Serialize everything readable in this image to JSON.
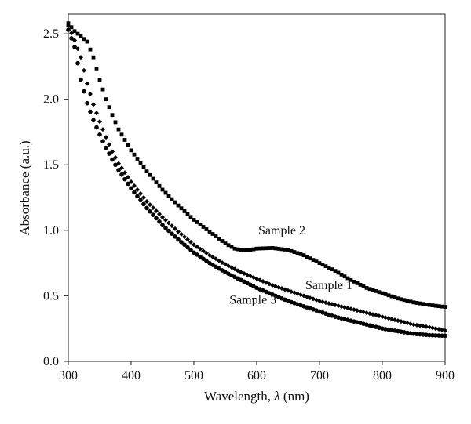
{
  "chart_data": {
    "type": "scatter",
    "xlabel_prefix": "Wavelength, ",
    "xlabel_symbol": "λ",
    "xlabel_suffix": " (nm)",
    "ylabel": "Absorbance (a.u.)",
    "xlim": [
      300,
      900
    ],
    "ylim": [
      0,
      2.65
    ],
    "x_ticks": [
      "300",
      "400",
      "500",
      "600",
      "700",
      "800",
      "900"
    ],
    "y_ticks": [
      "0.0",
      "0.5",
      "1.0",
      "1.5",
      "2.0",
      "2.5"
    ],
    "grid": false,
    "legend": "none",
    "series": [
      {
        "name": "Sample 1",
        "marker": "diamond",
        "points": [
          [
            300,
            2.56
          ],
          [
            310,
            2.45
          ],
          [
            320,
            2.32
          ],
          [
            330,
            2.12
          ],
          [
            340,
            1.96
          ],
          [
            350,
            1.83
          ],
          [
            360,
            1.71
          ],
          [
            370,
            1.6
          ],
          [
            380,
            1.51
          ],
          [
            390,
            1.44
          ],
          [
            400,
            1.37
          ],
          [
            425,
            1.22
          ],
          [
            450,
            1.1
          ],
          [
            475,
            0.99
          ],
          [
            500,
            0.89
          ],
          [
            525,
            0.81
          ],
          [
            550,
            0.74
          ],
          [
            575,
            0.68
          ],
          [
            600,
            0.63
          ],
          [
            625,
            0.58
          ],
          [
            650,
            0.54
          ],
          [
            675,
            0.5
          ],
          [
            700,
            0.46
          ],
          [
            725,
            0.43
          ],
          [
            750,
            0.4
          ],
          [
            775,
            0.37
          ],
          [
            800,
            0.34
          ],
          [
            825,
            0.31
          ],
          [
            850,
            0.28
          ],
          [
            875,
            0.26
          ],
          [
            900,
            0.235
          ]
        ]
      },
      {
        "name": "Sample 2",
        "marker": "square",
        "points": [
          [
            300,
            2.58
          ],
          [
            310,
            2.52
          ],
          [
            320,
            2.48
          ],
          [
            330,
            2.44
          ],
          [
            340,
            2.32
          ],
          [
            350,
            2.15
          ],
          [
            360,
            2.0
          ],
          [
            370,
            1.88
          ],
          [
            380,
            1.77
          ],
          [
            390,
            1.69
          ],
          [
            400,
            1.61
          ],
          [
            425,
            1.45
          ],
          [
            450,
            1.31
          ],
          [
            475,
            1.19
          ],
          [
            500,
            1.08
          ],
          [
            525,
            0.99
          ],
          [
            550,
            0.9
          ],
          [
            565,
            0.86
          ],
          [
            575,
            0.85
          ],
          [
            590,
            0.85
          ],
          [
            600,
            0.86
          ],
          [
            625,
            0.865
          ],
          [
            650,
            0.85
          ],
          [
            675,
            0.81
          ],
          [
            700,
            0.75
          ],
          [
            725,
            0.69
          ],
          [
            750,
            0.62
          ],
          [
            775,
            0.56
          ],
          [
            800,
            0.52
          ],
          [
            825,
            0.48
          ],
          [
            850,
            0.45
          ],
          [
            875,
            0.43
          ],
          [
            900,
            0.415
          ]
        ]
      },
      {
        "name": "Sample 3",
        "marker": "circle",
        "points": [
          [
            300,
            2.53
          ],
          [
            310,
            2.4
          ],
          [
            320,
            2.15
          ],
          [
            330,
            1.97
          ],
          [
            340,
            1.84
          ],
          [
            350,
            1.73
          ],
          [
            360,
            1.63
          ],
          [
            370,
            1.54
          ],
          [
            380,
            1.46
          ],
          [
            390,
            1.39
          ],
          [
            400,
            1.32
          ],
          [
            425,
            1.17
          ],
          [
            450,
            1.04
          ],
          [
            475,
            0.93
          ],
          [
            500,
            0.83
          ],
          [
            525,
            0.75
          ],
          [
            550,
            0.68
          ],
          [
            575,
            0.62
          ],
          [
            600,
            0.56
          ],
          [
            625,
            0.51
          ],
          [
            650,
            0.46
          ],
          [
            675,
            0.42
          ],
          [
            700,
            0.38
          ],
          [
            725,
            0.34
          ],
          [
            750,
            0.31
          ],
          [
            775,
            0.28
          ],
          [
            800,
            0.25
          ],
          [
            825,
            0.23
          ],
          [
            850,
            0.21
          ],
          [
            875,
            0.2
          ],
          [
            900,
            0.195
          ]
        ]
      }
    ],
    "annotations": [
      {
        "text": "Sample 2",
        "x": 640,
        "y": 0.97
      },
      {
        "text": "Sample 1",
        "x": 715,
        "y": 0.55
      },
      {
        "text": "Sample 3",
        "x": 594,
        "y": 0.44
      }
    ]
  }
}
